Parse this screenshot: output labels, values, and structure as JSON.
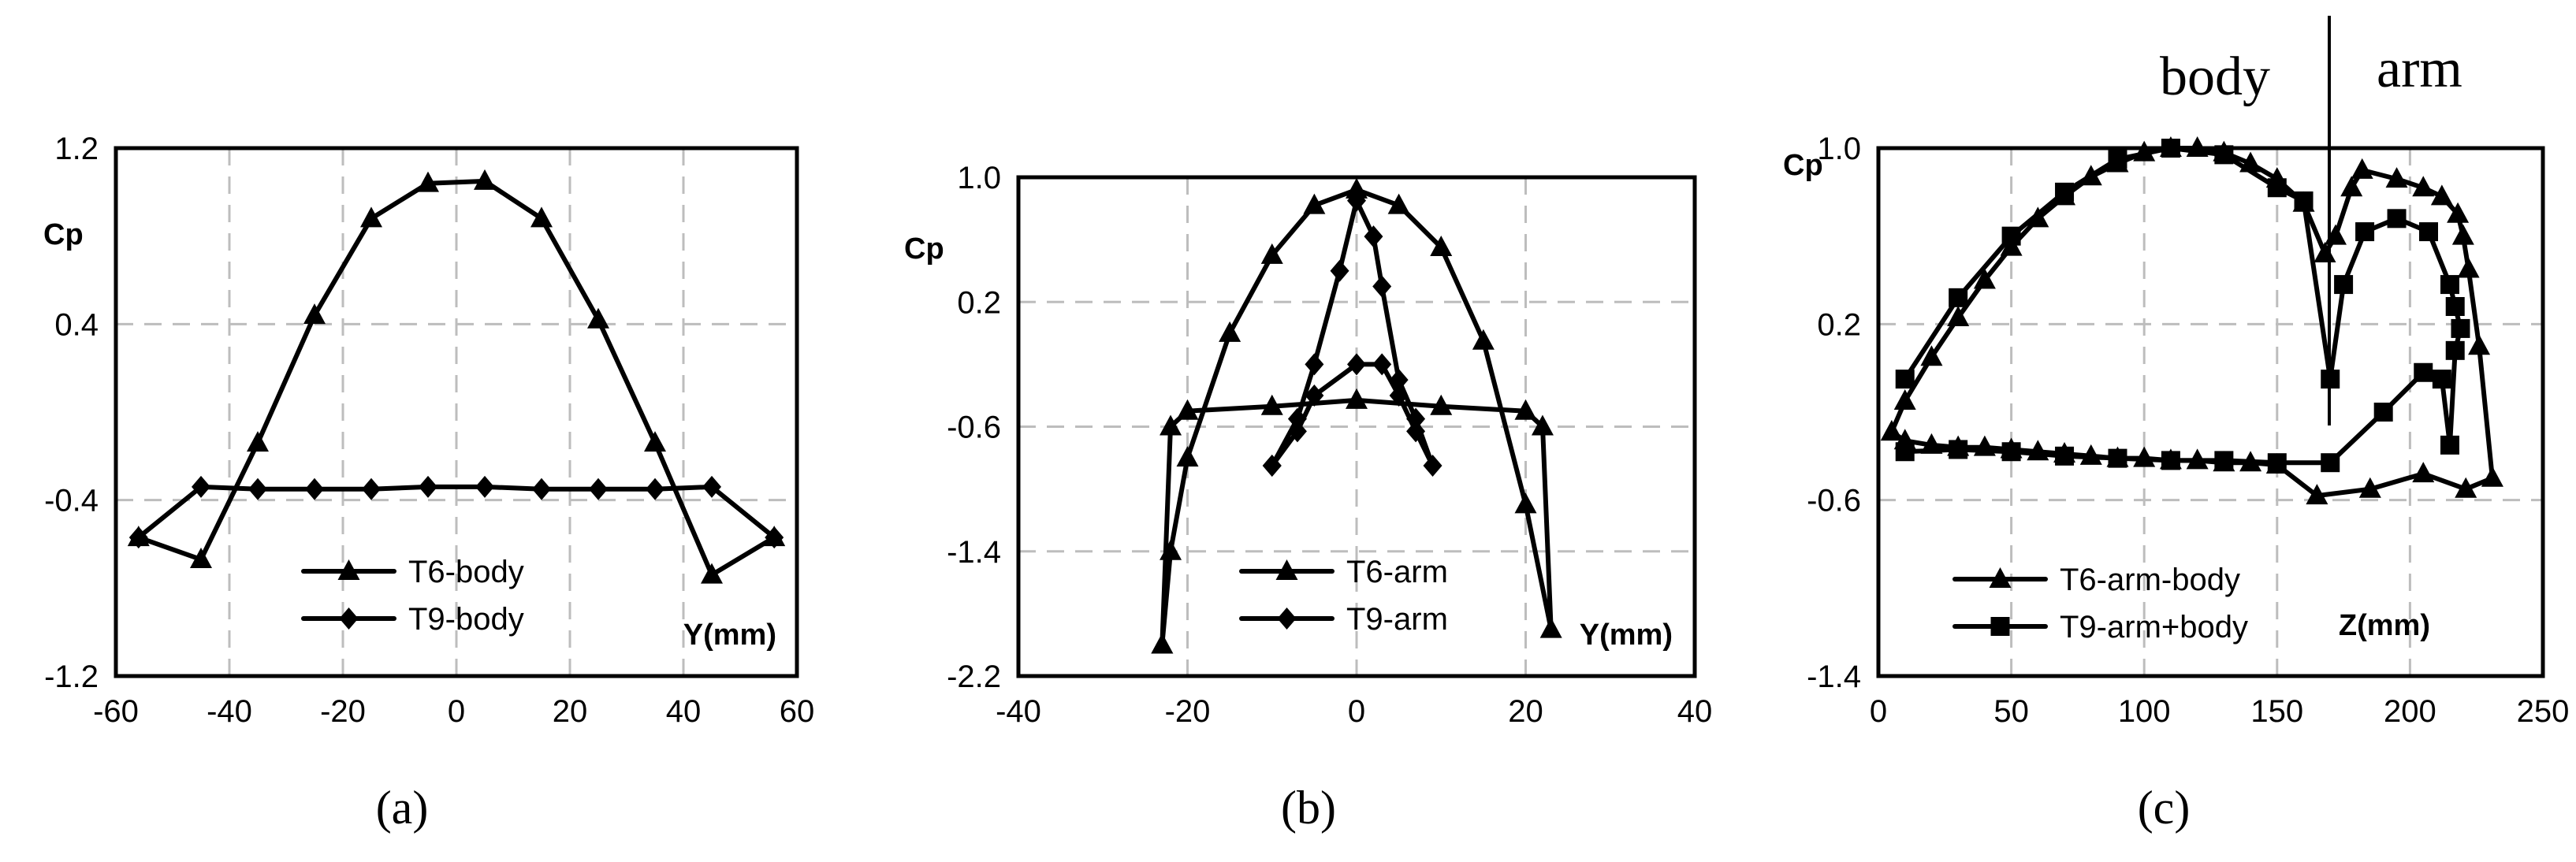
{
  "chart_data": [
    {
      "type": "line",
      "panel_label": "(a)",
      "ylabel": "Cp",
      "xlabel": "Y(mm)",
      "xlim": [
        -60,
        60
      ],
      "ylim": [
        -1.2,
        1.2
      ],
      "xticks": [
        "-60",
        "-40",
        "-20",
        "0",
        "20",
        "40",
        "60"
      ],
      "yticks": [
        "1.2",
        "0.4",
        "-0.4",
        "-1.2"
      ],
      "grid": true,
      "legend": "bottom-center",
      "series": [
        {
          "name": "T6-body",
          "marker": "triangle",
          "x": [
            -56,
            -45,
            -35,
            -25,
            -15,
            -5,
            5,
            15,
            25,
            35,
            45,
            56
          ],
          "y": [
            -0.57,
            -0.67,
            -0.14,
            0.44,
            0.88,
            1.04,
            1.05,
            0.88,
            0.42,
            -0.14,
            -0.74,
            -0.57
          ]
        },
        {
          "name": "T9-body",
          "marker": "diamond",
          "x": [
            -56,
            -45,
            -35,
            -25,
            -15,
            -5,
            5,
            15,
            25,
            35,
            45,
            56
          ],
          "y": [
            -0.57,
            -0.34,
            -0.35,
            -0.35,
            -0.35,
            -0.34,
            -0.34,
            -0.35,
            -0.35,
            -0.35,
            -0.34,
            -0.57
          ]
        }
      ]
    },
    {
      "type": "line",
      "panel_label": "(b)",
      "ylabel": "Cp",
      "xlabel": "Y(mm)",
      "xlim": [
        -40,
        40
      ],
      "ylim": [
        -2.2,
        1.0
      ],
      "xticks": [
        "-40",
        "-20",
        "0",
        "20",
        "40"
      ],
      "yticks": [
        "1.0",
        "0.2",
        "-0.6",
        "-1.4",
        "-2.2"
      ],
      "grid": true,
      "legend": "bottom-center",
      "series": [
        {
          "name": "T6-arm",
          "marker": "triangle",
          "x": [
            -23,
            -22,
            -20,
            -10,
            0,
            10,
            20,
            22,
            23,
            20,
            15,
            10,
            5,
            0,
            -5,
            -10,
            -15,
            -20,
            -22,
            -23
          ],
          "y": [
            -2.0,
            -0.6,
            -0.5,
            -0.47,
            -0.43,
            -0.47,
            -0.5,
            -0.6,
            -1.9,
            -1.1,
            -0.05,
            0.55,
            0.82,
            0.92,
            0.82,
            0.5,
            0.0,
            -0.8,
            -1.4,
            -2.0
          ]
        },
        {
          "name": "T9-arm",
          "marker": "diamond",
          "x": [
            -10,
            -7,
            -5,
            0,
            3,
            5,
            7,
            9,
            7,
            5,
            3,
            2,
            0,
            -2,
            -5,
            -7,
            -10
          ],
          "y": [
            -0.85,
            -0.63,
            -0.4,
            -0.2,
            -0.2,
            -0.4,
            -0.63,
            -0.85,
            -0.55,
            -0.3,
            0.3,
            0.62,
            0.85,
            0.4,
            -0.2,
            -0.55,
            -0.85
          ]
        }
      ]
    },
    {
      "type": "line",
      "panel_label": "(c)",
      "ylabel": "Cp",
      "xlabel": "Z(mm)",
      "xlim": [
        0,
        250
      ],
      "ylim": [
        -1.4,
        1.0
      ],
      "xticks": [
        "0",
        "50",
        "100",
        "150",
        "200",
        "250"
      ],
      "yticks": [
        "1.0",
        "0.2",
        "-0.6",
        "-1.4"
      ],
      "grid": true,
      "legend": "bottom-left",
      "annotations": [
        "body",
        "arm"
      ],
      "series": [
        {
          "name": "T6-arm-body",
          "marker": "triangle",
          "x": [
            5,
            10,
            20,
            30,
            40,
            50,
            60,
            70,
            80,
            90,
            100,
            110,
            120,
            130,
            140,
            150,
            160,
            168,
            172,
            178,
            182,
            195,
            205,
            212,
            218,
            220,
            222,
            226,
            231,
            221,
            205,
            185,
            165,
            150,
            140,
            130,
            120,
            110,
            100,
            90,
            80,
            70,
            60,
            50,
            40,
            30,
            20,
            10,
            5
          ],
          "y": [
            -0.29,
            -0.15,
            0.05,
            0.23,
            0.4,
            0.55,
            0.68,
            0.78,
            0.87,
            0.93,
            0.98,
            1.0,
            1.0,
            0.98,
            0.93,
            0.86,
            0.75,
            0.52,
            0.6,
            0.82,
            0.9,
            0.86,
            0.82,
            0.78,
            0.7,
            0.6,
            0.45,
            0.1,
            -0.5,
            -0.55,
            -0.48,
            -0.55,
            -0.58,
            -0.44,
            -0.43,
            -0.43,
            -0.42,
            -0.42,
            -0.41,
            -0.41,
            -0.4,
            -0.39,
            -0.38,
            -0.37,
            -0.36,
            -0.36,
            -0.35,
            -0.33,
            -0.29
          ]
        },
        {
          "name": "T9-arm+body",
          "marker": "square",
          "x": [
            10,
            30,
            50,
            70,
            90,
            110,
            130,
            150,
            160,
            170,
            175,
            183,
            195,
            207,
            215,
            217,
            219,
            217,
            215,
            212,
            205,
            190,
            170,
            150,
            130,
            110,
            90,
            70,
            50,
            30,
            10
          ],
          "y": [
            -0.05,
            0.32,
            0.6,
            0.8,
            0.95,
            1.0,
            0.97,
            0.82,
            0.76,
            -0.05,
            0.38,
            0.62,
            0.68,
            0.62,
            0.38,
            0.28,
            0.18,
            0.08,
            -0.35,
            -0.05,
            -0.02,
            -0.2,
            -0.43,
            -0.43,
            -0.42,
            -0.42,
            -0.41,
            -0.4,
            -0.38,
            -0.37,
            -0.38
          ]
        }
      ]
    }
  ]
}
